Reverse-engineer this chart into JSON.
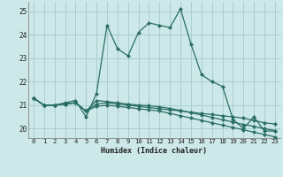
{
  "xlabel": "Humidex (Indice chaleur)",
  "bg_color": "#cce8e8",
  "grid_color": "#aacece",
  "line_color": "#2a6e62",
  "x_ticks": [
    0,
    1,
    2,
    3,
    4,
    5,
    6,
    7,
    8,
    9,
    10,
    11,
    12,
    13,
    14,
    15,
    16,
    17,
    18,
    19,
    20,
    21,
    22,
    23
  ],
  "ylim": [
    19.6,
    25.4
  ],
  "xlim": [
    -0.5,
    23.5
  ],
  "yticks": [
    20,
    21,
    22,
    23,
    24,
    25
  ],
  "series": [
    [
      21.3,
      21.0,
      21.0,
      21.1,
      21.2,
      20.5,
      21.5,
      24.4,
      23.4,
      23.1,
      24.1,
      24.5,
      24.4,
      24.3,
      25.1,
      23.6,
      22.3,
      22.0,
      21.8,
      20.4,
      20.0,
      20.5,
      19.9,
      19.9
    ],
    [
      21.3,
      21.0,
      21.0,
      21.05,
      21.1,
      20.75,
      21.05,
      21.1,
      21.05,
      21.0,
      20.95,
      20.9,
      20.85,
      20.8,
      20.75,
      20.7,
      20.65,
      20.6,
      20.55,
      20.5,
      20.45,
      20.35,
      20.25,
      20.2
    ],
    [
      21.3,
      21.0,
      21.0,
      21.05,
      21.1,
      20.75,
      20.95,
      21.0,
      20.95,
      20.9,
      20.85,
      20.8,
      20.75,
      20.65,
      20.55,
      20.45,
      20.35,
      20.25,
      20.15,
      20.05,
      19.95,
      19.85,
      19.75,
      19.65
    ],
    [
      21.3,
      21.0,
      21.0,
      21.05,
      21.1,
      20.75,
      21.2,
      21.15,
      21.1,
      21.05,
      21.0,
      20.98,
      20.93,
      20.86,
      20.78,
      20.68,
      20.58,
      20.48,
      20.38,
      20.28,
      20.18,
      20.1,
      20.0,
      19.92
    ]
  ]
}
